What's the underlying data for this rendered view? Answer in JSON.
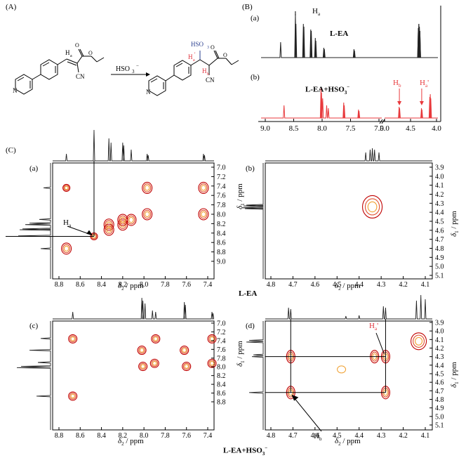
{
  "panelA": {
    "label": "(A)",
    "reagent": "HSO",
    "reagent_sub": "3",
    "reagent_sup": "−",
    "atom_labels": {
      "Ha_reactant": "H",
      "Ha_reactant_sub": "a",
      "CN_left": "CN",
      "CN_right": "CN",
      "HSO3": "HSO",
      "HSO3_sub": "3",
      "Ha_prime": "H",
      "Ha_prime_sub": "a",
      "Ha_prime_mark": "'",
      "Hb": "H",
      "Hb_sub": "b"
    }
  },
  "panelB": {
    "label": "(B)",
    "trace_a_label": "(a)",
    "trace_b_label": "(b)",
    "trace_a_name": "L-EA",
    "trace_b_name": "L-EA+HSO",
    "trace_b_sub": "3",
    "trace_b_sup": "−",
    "peak_Ha": "H",
    "peak_Ha_sub": "a",
    "peak_Hb": "H",
    "peak_Hb_sub": "b",
    "peak_Hap": "H",
    "peak_Hap_sub": "a",
    "peak_Hap_mark": "'",
    "x_ticks": [
      "9.0",
      "8.5",
      "8.0",
      "7.5",
      "7.0",
      "5.0",
      "4.5",
      "4.0"
    ],
    "colors": {
      "trace_a": "#222222",
      "trace_b": "#e8393c"
    }
  },
  "panelC": {
    "label": "(C)",
    "sub_a": "(a)",
    "sub_b": "(b)",
    "sub_c": "(c)",
    "sub_d": "(d)",
    "ha_label": "H",
    "ha_sub": "a",
    "hb_label": "H",
    "hb_sub": "b",
    "hap_label": "H",
    "hap_sub": "a",
    "hap_mark": "'",
    "x_ticks_aromatic_a": [
      "8.8",
      "8.6",
      "8.4",
      "8.2",
      "8.0",
      "7.8",
      "7.6",
      "7.4"
    ],
    "x_ticks_aromatic_c": [
      "8.8",
      "8.6",
      "8.4",
      "8.2",
      "8.0",
      "7.8",
      "7.6",
      "7.4"
    ],
    "x_ticks_aliphatic": [
      "4.8",
      "4.7",
      "4.6",
      "4.5",
      "4.4",
      "4.3",
      "4.2",
      "4.1"
    ],
    "y_ticks_aromatic_a": [
      "7.0",
      "7.2",
      "7.4",
      "7.6",
      "7.8",
      "8.0",
      "8.2",
      "8.4",
      "8.6",
      "8.8",
      "9.0"
    ],
    "y_ticks_aromatic_c": [
      "7.0",
      "7.2",
      "7.4",
      "7.6",
      "7.8",
      "8.0",
      "8.2",
      "8.4",
      "8.6",
      "8.8"
    ],
    "y_ticks_aliphatic": [
      "3.9",
      "4.0",
      "4.1",
      "4.2",
      "4.3",
      "4.4",
      "4.5",
      "4.6",
      "4.7",
      "4.8",
      "4.9",
      "5.0",
      "5.1"
    ],
    "x_axis_label": "δ",
    "x_axis_sub": "2",
    "x_axis_unit": " / ppm",
    "y_axis_label": "δ",
    "y_axis_sub": "1",
    "y_axis_unit": " / ppm",
    "caption_top": "L-EA",
    "caption_bottom": "L-EA+HSO",
    "caption_bottom_sub": "3",
    "caption_bottom_sup": "−",
    "contour_colors": [
      "#c00000",
      "#e05030",
      "#f0a030"
    ]
  }
}
